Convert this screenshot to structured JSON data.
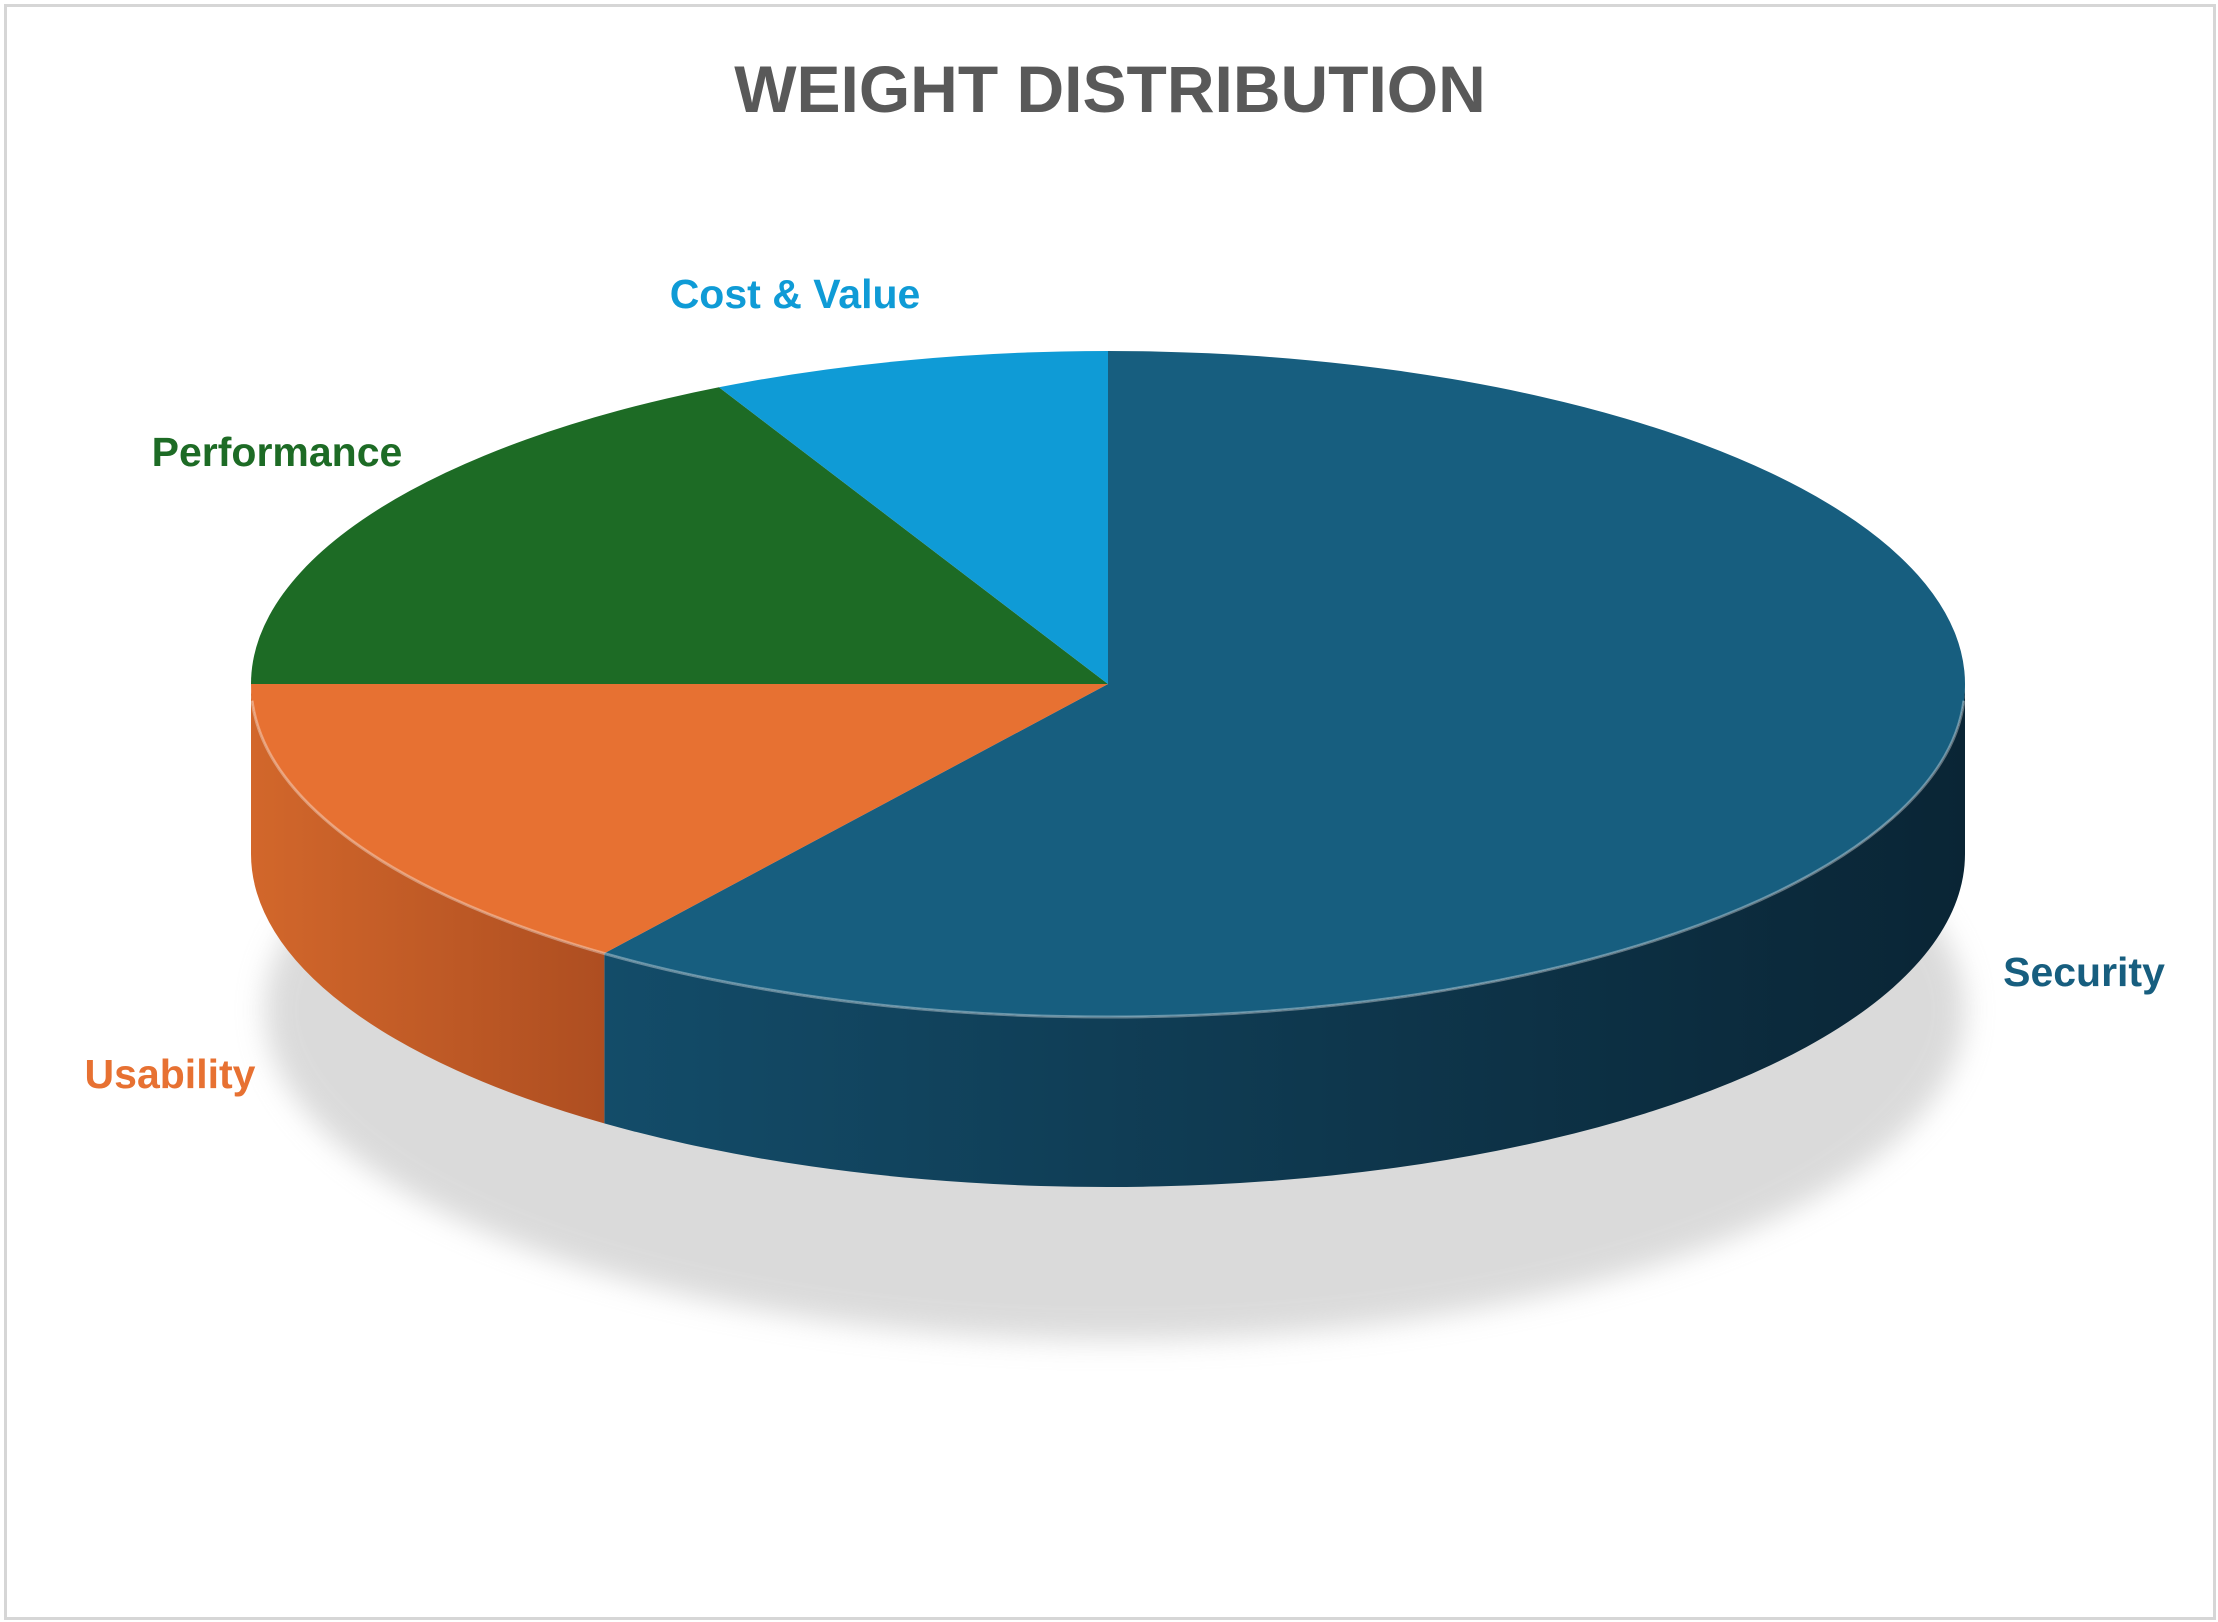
{
  "chart_data": {
    "type": "pie",
    "title": "WEIGHT DISTRIBUTION",
    "style": "3d",
    "data_labels": "category name",
    "slices": [
      {
        "label": "Security",
        "value": 60,
        "color": "#175E7F",
        "side_dark": "#0A2535",
        "side_light": "#134C69"
      },
      {
        "label": "Usability",
        "value": 15,
        "color": "#E77132",
        "side_dark": "#AE4E21",
        "side_light": "#D2672B"
      },
      {
        "label": "Performance",
        "value": 17.5,
        "color": "#1D6B25",
        "side_dark": "#114317",
        "side_light": "#1A5E20"
      },
      {
        "label": "Cost & Value",
        "value": 7.5,
        "color": "#0F9BD6",
        "side_dark": "#0A6C97",
        "side_light": "#0E8AC0"
      }
    ]
  }
}
